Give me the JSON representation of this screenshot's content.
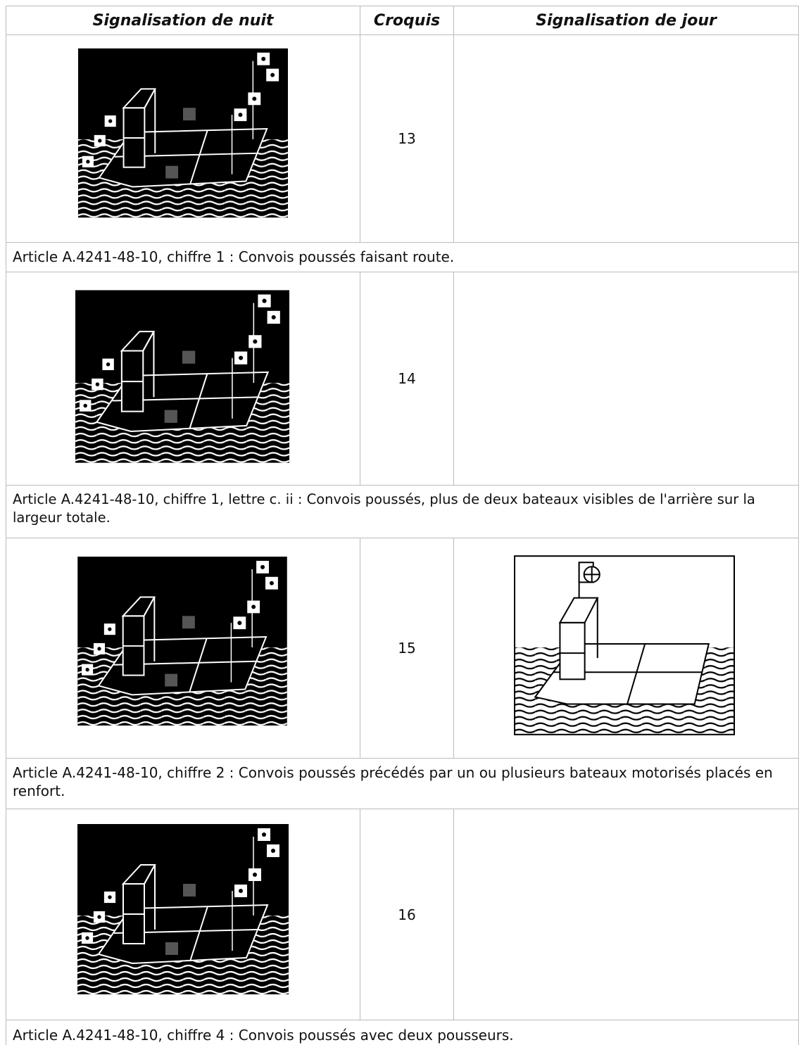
{
  "header": [
    "Signalisation de nuit",
    "Croquis",
    "Signalisation de jour"
  ],
  "rows": [
    {
      "croquis": 13,
      "caption": "Article A.4241-48-10, chiffre 1 : Convois poussés faisant route."
    },
    {
      "croquis": 14,
      "caption": "Article A.4241-48-10, chiffre 1, lettre c. ii : Convois poussés, plus de deux bateaux visibles de l'arrière sur la largeur totale."
    },
    {
      "croquis": 15,
      "caption": "Article A.4241-48-10, chiffre 2 : Convois poussés précédés par un ou plusieurs bateaux motorisés placés en renfort."
    },
    {
      "croquis": 16,
      "caption": "Article A.4241-48-10, chiffre 4 : Convois poussés avec deux pousseurs."
    }
  ]
}
